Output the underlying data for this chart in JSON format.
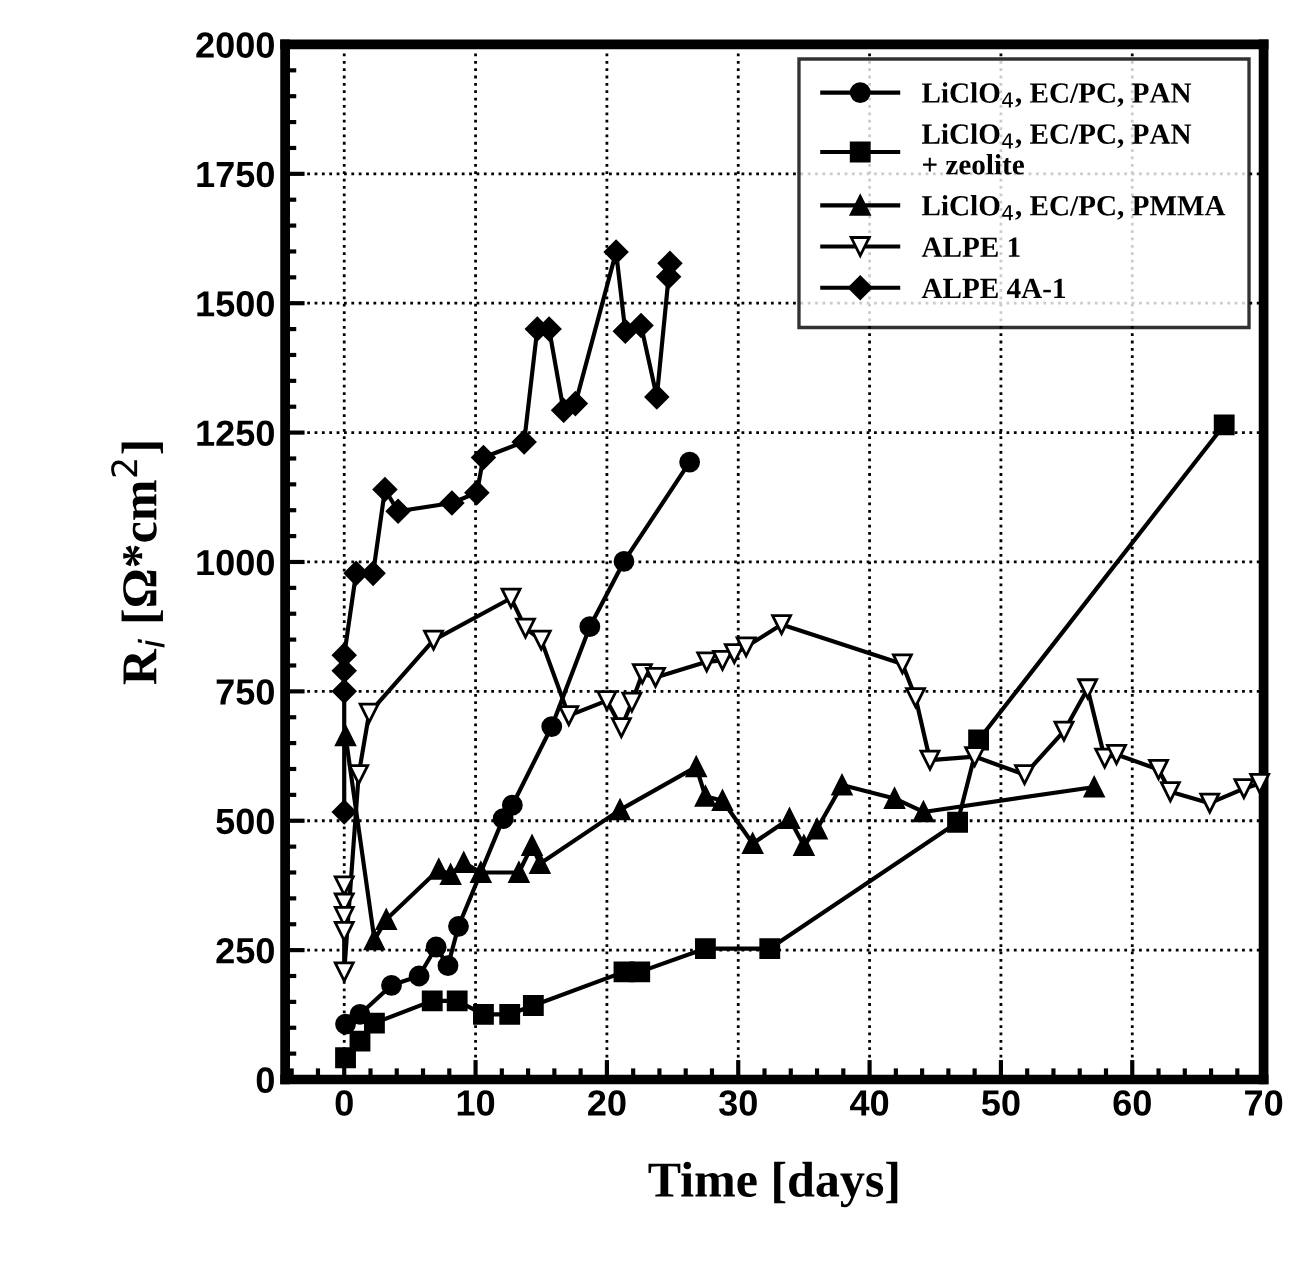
{
  "chart_data": {
    "type": "line",
    "xlabel": "Time [days]",
    "ylabel": "R$_{i}$ [Ω*cm$^{2}$]",
    "xlim": [
      -4.5,
      70
    ],
    "xticks": [
      0,
      10,
      20,
      30,
      40,
      50,
      60,
      70
    ],
    "ylim": [
      0,
      2000
    ],
    "yticks": [
      0,
      250,
      500,
      750,
      1000,
      1250,
      1500,
      1750,
      2000
    ],
    "grid": true,
    "legend": "top right",
    "line_style": "solid",
    "series": [
      {
        "name": "LiClO$_{4}$, EC/PC, PAN",
        "color": "#000000",
        "marker": "circle",
        "x": [
          0.1,
          1.2,
          3.6,
          5.7,
          7.0,
          7.9,
          8.7,
          12.1,
          12.8,
          15.8,
          18.7,
          21.3,
          26.3
        ],
        "values": [
          107,
          126,
          182,
          200,
          256,
          220,
          296,
          504,
          530,
          682,
          875,
          1001,
          1193
        ]
      },
      {
        "name": "LiClO$_{4}$, EC/PC, PAN\n+ zeolite",
        "color": "#000000",
        "marker": "square",
        "x": [
          0.1,
          1.2,
          2.3,
          6.7,
          8.6,
          10.6,
          12.6,
          14.4,
          21.3,
          22.5,
          27.5,
          32.4,
          46.7,
          48.3,
          67
        ],
        "values": [
          42,
          74,
          109,
          152,
          152,
          126,
          126,
          143,
          208,
          208,
          253,
          253,
          497,
          656,
          1265
        ]
      },
      {
        "name": "LiClO$_{4}$, EC/PC, PMMA",
        "color": "#000000",
        "marker": "triangle",
        "x": [
          0.1,
          2.3,
          3.2,
          7.2,
          8.1,
          9.1,
          10.4,
          13.3,
          14.3,
          14.9,
          21.0,
          26.8,
          27.5,
          28.8,
          31.1,
          33.9,
          35.0,
          36.0,
          37.9,
          41.9,
          44.1,
          57.1
        ],
        "values": [
          664,
          270,
          309,
          406,
          396,
          419,
          400,
          400,
          452,
          417,
          521,
          604,
          547,
          539,
          456,
          504,
          452,
          484,
          569,
          543,
          517,
          565
        ]
      },
      {
        "name": "ALPE 1",
        "color": "#000000",
        "marker": "triangle_down_open",
        "x": [
          0,
          0,
          0,
          0,
          0,
          1.1,
          1.9,
          6.8,
          12.7,
          13.8,
          15.0,
          17.1,
          20.0,
          21.1,
          21.9,
          22.7,
          23.7,
          27.6,
          28.8,
          29.7,
          30.6,
          33.3,
          42.5,
          43.5,
          44.6,
          48.0,
          51.8,
          54.8,
          56.6,
          57.9,
          58.8,
          62.0,
          62.9,
          65.9,
          68.5,
          69.7
        ],
        "values": [
          374,
          341,
          315,
          286,
          208,
          589,
          708,
          849,
          930,
          872,
          849,
          703,
          732,
          680,
          729,
          784,
          777,
          807,
          810,
          823,
          836,
          879,
          803,
          738,
          617,
          624,
          589,
          673,
          755,
          621,
          628,
          599,
          556,
          534,
          562,
          572
        ]
      },
      {
        "name": "ALPE 4A-1",
        "color": "#000000",
        "marker": "diamond",
        "x": [
          0,
          0,
          0,
          0,
          0.9,
          2.2,
          3.1,
          4.1,
          8.2,
          10.1,
          10.6,
          13.7,
          14.7,
          15.6,
          16.7,
          17.6,
          20.7,
          21.4,
          22.6,
          23.8,
          24.7,
          24.8
        ],
        "values": [
          517,
          750,
          790,
          820,
          978,
          978,
          1140,
          1098,
          1114,
          1134,
          1202,
          1232,
          1450,
          1450,
          1293,
          1306,
          1599,
          1446,
          1457,
          1319,
          1551,
          1577
        ]
      }
    ]
  }
}
